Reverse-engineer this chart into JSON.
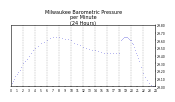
{
  "title": "Milwaukee Barometric Pressure\nper Minute\n(24 Hours)",
  "title_fontsize": 3.5,
  "dot_color": "#0000cc",
  "dot_size": 0.4,
  "background_color": "#ffffff",
  "grid_color": "#888888",
  "tick_label_fontsize": 2.2,
  "ylabel_fontsize": 2.2,
  "ylim": [
    29.0,
    29.8
  ],
  "xlim": [
    0,
    1440
  ],
  "yticks": [
    29.0,
    29.1,
    29.2,
    29.3,
    29.4,
    29.5,
    29.6,
    29.7,
    29.8
  ],
  "ytick_labels": [
    "29.00",
    "29.10",
    "29.20",
    "29.30",
    "29.40",
    "29.50",
    "29.60",
    "29.70",
    "29.80"
  ],
  "xtick_positions": [
    0,
    60,
    120,
    180,
    240,
    300,
    360,
    420,
    480,
    540,
    600,
    660,
    720,
    780,
    840,
    900,
    960,
    1020,
    1080,
    1140,
    1200,
    1260,
    1320,
    1380,
    1440
  ],
  "xtick_labels": [
    "0",
    "1",
    "2",
    "3",
    "4",
    "5",
    "6",
    "7",
    "8",
    "9",
    "10",
    "11",
    "12",
    "13",
    "14",
    "15",
    "16",
    "17",
    "18",
    "19",
    "20",
    "21",
    "22",
    "23",
    "24"
  ],
  "vgrid_positions": [
    120,
    240,
    360,
    480,
    600,
    720,
    840,
    960,
    1080,
    1200,
    1320
  ],
  "data_x": [
    5,
    15,
    25,
    40,
    55,
    70,
    85,
    100,
    120,
    140,
    160,
    180,
    200,
    220,
    240,
    270,
    300,
    330,
    360,
    390,
    420,
    450,
    480,
    510,
    540,
    570,
    600,
    630,
    660,
    690,
    720,
    750,
    780,
    810,
    840,
    870,
    900,
    930,
    960,
    990,
    1020,
    1050,
    1080,
    1100,
    1110,
    1120,
    1130,
    1140,
    1150,
    1160,
    1170,
    1180,
    1190,
    1200,
    1210,
    1220,
    1230,
    1240,
    1250,
    1260,
    1270,
    1280,
    1300,
    1320,
    1340,
    1360,
    1380,
    1400,
    1420,
    1440
  ],
  "data_y": [
    29.05,
    29.07,
    29.1,
    29.13,
    29.16,
    29.19,
    29.22,
    29.25,
    29.3,
    29.33,
    29.36,
    29.4,
    29.44,
    29.47,
    29.5,
    29.53,
    29.56,
    29.58,
    29.61,
    29.63,
    29.65,
    29.65,
    29.64,
    29.63,
    29.62,
    29.62,
    29.6,
    29.57,
    29.55,
    29.54,
    29.52,
    29.5,
    29.49,
    29.48,
    29.47,
    29.46,
    29.45,
    29.44,
    29.43,
    29.44,
    29.44,
    29.43,
    29.43,
    29.6,
    29.62,
    29.63,
    29.64,
    29.65,
    29.65,
    29.64,
    29.63,
    29.62,
    29.61,
    29.6,
    29.57,
    29.55,
    29.52,
    29.48,
    29.44,
    29.41,
    29.37,
    29.33,
    29.25,
    29.18,
    29.12,
    29.08,
    29.05,
    29.02,
    29.01,
    29.0
  ]
}
